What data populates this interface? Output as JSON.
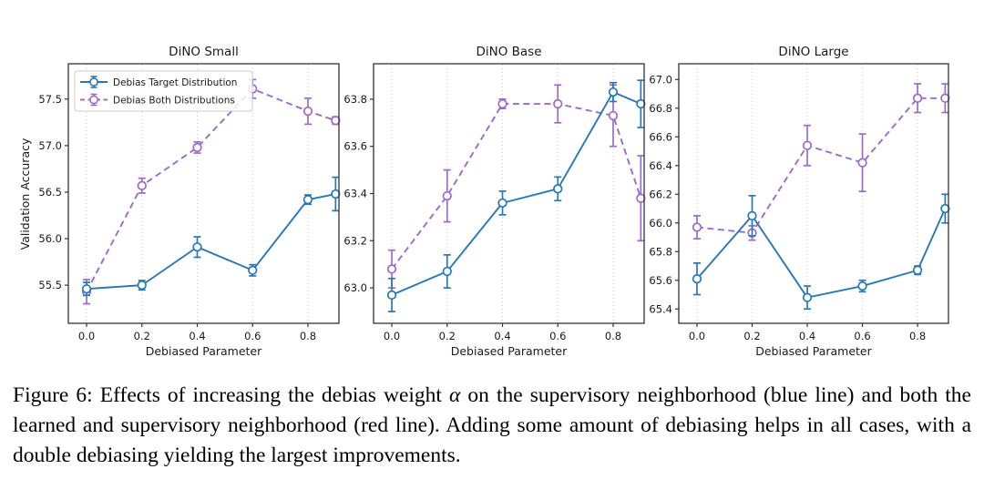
{
  "page": {
    "background": "#ffffff"
  },
  "colors": {
    "target_blue": "#2878b5",
    "both_purple": "#9c6bc8",
    "grid": "#cccccc",
    "spine": "#333333",
    "text": "#1a1a1a",
    "legend_border": "#cccccc"
  },
  "axis": {
    "xlabel": "Debiased Parameter",
    "ylabel": "Validation Accuracy"
  },
  "legend": {
    "items": [
      "Debias Target Distribution",
      "Debias Both Distributions"
    ]
  },
  "chart_data": [
    {
      "type": "line",
      "title": "DiNO Small",
      "xlabel": "Debiased Parameter",
      "ylabel": "Validation Accuracy",
      "x": [
        0.0,
        0.2,
        0.4,
        0.6,
        0.8,
        0.9
      ],
      "xticks": [
        0.0,
        0.2,
        0.4,
        0.6,
        0.8
      ],
      "yticks": [
        55.5,
        56.0,
        56.5,
        57.0,
        57.5
      ],
      "xlim": [
        -0.066,
        0.912
      ],
      "ylim": [
        55.09,
        57.88
      ],
      "grid": "vertical-dotted",
      "legend_visible": true,
      "series": [
        {
          "name": "Debias Target Distribution",
          "color": "#2878b5",
          "line": "solid",
          "marker": "circle-open",
          "values": [
            55.46,
            55.5,
            55.91,
            55.66,
            56.42,
            56.48
          ],
          "errors": [
            0.07,
            0.05,
            0.11,
            0.06,
            0.05,
            0.18
          ]
        },
        {
          "name": "Debias Both Distributions",
          "color": "#9c6bc8",
          "line": "dashed",
          "marker": "circle-open",
          "values": [
            55.43,
            56.57,
            56.98,
            57.61,
            57.37,
            57.27
          ],
          "errors": [
            0.13,
            0.08,
            0.06,
            0.1,
            0.14,
            0.04
          ]
        }
      ]
    },
    {
      "type": "line",
      "title": "DiNO Base",
      "xlabel": "Debiased Parameter",
      "ylabel": "Validation Accuracy",
      "x": [
        0.0,
        0.2,
        0.4,
        0.6,
        0.8,
        0.9
      ],
      "xticks": [
        0.0,
        0.2,
        0.4,
        0.6,
        0.8
      ],
      "yticks": [
        63.0,
        63.2,
        63.4,
        63.6,
        63.8
      ],
      "xlim": [
        -0.066,
        0.912
      ],
      "ylim": [
        62.85,
        63.95
      ],
      "grid": "vertical-dotted",
      "legend_visible": false,
      "series": [
        {
          "name": "Debias Target Distribution",
          "color": "#2878b5",
          "line": "solid",
          "marker": "circle-open",
          "values": [
            62.97,
            63.07,
            63.36,
            63.42,
            63.83,
            63.78
          ],
          "errors": [
            0.07,
            0.07,
            0.05,
            0.05,
            0.04,
            0.1
          ]
        },
        {
          "name": "Debias Both Distributions",
          "color": "#9c6bc8",
          "line": "dashed",
          "marker": "circle-open",
          "values": [
            63.08,
            63.39,
            63.78,
            63.78,
            63.73,
            63.38
          ],
          "errors": [
            0.08,
            0.11,
            0.02,
            0.08,
            0.13,
            0.18
          ]
        }
      ]
    },
    {
      "type": "line",
      "title": "DiNO Large",
      "xlabel": "Debiased Parameter",
      "ylabel": "Validation Accuracy",
      "x": [
        0.0,
        0.2,
        0.4,
        0.6,
        0.8,
        0.9
      ],
      "xticks": [
        0.0,
        0.2,
        0.4,
        0.6,
        0.8
      ],
      "yticks": [
        65.4,
        65.6,
        65.8,
        66.0,
        66.2,
        66.4,
        66.6,
        66.8,
        67.0
      ],
      "xlim": [
        -0.066,
        0.912
      ],
      "ylim": [
        65.3,
        67.11
      ],
      "grid": "vertical-dotted",
      "legend_visible": false,
      "series": [
        {
          "name": "Debias Target Distribution",
          "color": "#2878b5",
          "line": "solid",
          "marker": "circle-open",
          "values": [
            65.61,
            66.05,
            65.48,
            65.56,
            65.67,
            66.1
          ],
          "errors": [
            0.11,
            0.14,
            0.08,
            0.04,
            0.03,
            0.1
          ]
        },
        {
          "name": "Debias Both Distributions",
          "color": "#9c6bc8",
          "line": "dashed",
          "marker": "circle-open",
          "values": [
            65.97,
            65.93,
            66.54,
            66.42,
            66.87,
            66.87
          ],
          "errors": [
            0.08,
            0.05,
            0.14,
            0.2,
            0.1,
            0.1
          ]
        }
      ]
    }
  ],
  "caption": {
    "before_alpha": "Figure 6: Effects of increasing the debias weight ",
    "alpha": "α",
    "after_alpha": " on the supervisory neighborhood (blue line) and both the learned and supervisory neighborhood (red line). Adding some amount of debiasing helps in all cases, with a double debiasing yielding the largest improvements."
  }
}
